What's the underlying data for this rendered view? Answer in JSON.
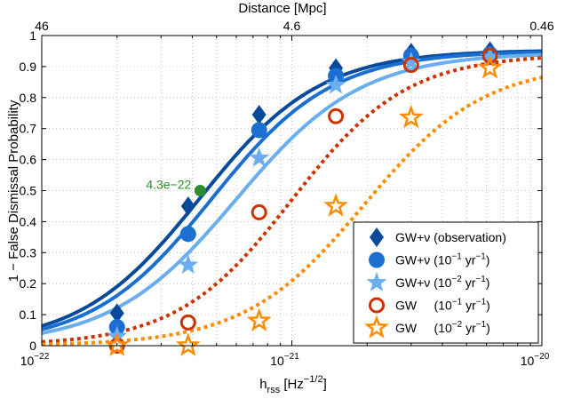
{
  "chart_data": {
    "type": "line",
    "title": "",
    "xlabel": "h",
    "xlabel_sub": "rss",
    "xlabel_unit_pre": "[Hz",
    "xlabel_unit_sup": "−1/2",
    "xlabel_unit_post": "]",
    "ylabel": "1 − False Dismissal Probability",
    "top_axis_label": "Distance [Mpc]",
    "top_ticks": [
      {
        "label": "46",
        "h": 1e-22
      },
      {
        "label": "4.6",
        "h": 1e-21
      },
      {
        "label": "0.46",
        "h": 1e-20
      }
    ],
    "xscale": "log",
    "xlim": [
      1e-22,
      1e-20
    ],
    "ylim": [
      0,
      1
    ],
    "x_ticks": [
      {
        "base": "10",
        "exp": "−22",
        "value": 1e-22
      },
      {
        "base": "10",
        "exp": "−21",
        "value": 1e-21
      },
      {
        "base": "10",
        "exp": "−20",
        "value": 1e-20
      }
    ],
    "y_ticks": [
      "0",
      "0.1",
      "0.2",
      "0.3",
      "0.4",
      "0.5",
      "0.6",
      "0.7",
      "0.8",
      "0.9",
      "1"
    ],
    "grid": true,
    "legend_position": "bottom-right",
    "annotation": {
      "text": "4.3e−22",
      "x": 4.3e-22,
      "y": 0.5,
      "color": "#2e8b2e"
    },
    "series": [
      {
        "name": "GW+ν (observation)",
        "legend_main": "GW+ν (observation)",
        "legend_exp": "",
        "legend_tail": "",
        "marker": "diamond",
        "color": "#0a4a9a",
        "line": "solid",
        "fit": {
          "x50": 4.3e-22,
          "w": 0.24,
          "top": 0.953
        },
        "x": [
          2e-22,
          3.85e-22,
          7.4e-22,
          1.5e-21,
          3e-21,
          6.2e-21
        ],
        "values": [
          0.105,
          0.45,
          0.745,
          0.895,
          0.945,
          0.95
        ]
      },
      {
        "name": "GW+ν (10^-1 yr^-1)",
        "legend_main": "GW+ν (10",
        "legend_exp": "−1",
        "legend_tail": "yr",
        "legend_tail_exp": "−1",
        "marker": "circle",
        "color": "#1a6fd0",
        "line": "solid",
        "fit": {
          "x50": 4.8e-22,
          "w": 0.24,
          "top": 0.95
        },
        "x": [
          2e-22,
          3.85e-22,
          7.4e-22,
          1.5e-21,
          3e-21,
          6.2e-21
        ],
        "values": [
          0.06,
          0.36,
          0.695,
          0.87,
          0.935,
          0.94
        ]
      },
      {
        "name": "GW+ν (10^-2 yr^-1)",
        "legend_main": "GW+ν (10",
        "legend_exp": "−2",
        "legend_tail": "yr",
        "legend_tail_exp": "−1",
        "marker": "star",
        "color": "#6aaef0",
        "line": "solid",
        "fit": {
          "x50": 6e-22,
          "w": 0.25,
          "top": 0.945
        },
        "x": [
          2e-22,
          3.85e-22,
          7.4e-22,
          1.5e-21,
          3e-21,
          6.2e-21
        ],
        "values": [
          0.03,
          0.26,
          0.605,
          0.84,
          0.915,
          0.93
        ]
      },
      {
        "name": "GW (10^-1 yr^-1)",
        "legend_main": "GW     (10",
        "legend_exp": "−1",
        "legend_tail": "yr",
        "legend_tail_exp": "−1",
        "marker": "open-circle",
        "color": "#cc3300",
        "line": "dotted",
        "fit": {
          "x50": 1e-21,
          "w": 0.23,
          "top": 0.94
        },
        "x": [
          2e-22,
          3.85e-22,
          7.4e-22,
          1.5e-21,
          3e-21,
          6.2e-21
        ],
        "values": [
          0.0,
          0.075,
          0.43,
          0.74,
          0.905,
          0.935
        ]
      },
      {
        "name": "GW (10^-2 yr^-1)",
        "legend_main": "GW     (10",
        "legend_exp": "−2",
        "legend_tail": "yr",
        "legend_tail_exp": "−1",
        "marker": "open-star",
        "color": "#ff8c00",
        "line": "dotted",
        "fit": {
          "x50": 1.95e-21,
          "w": 0.24,
          "top": 0.91
        },
        "x": [
          2e-22,
          3.85e-22,
          7.4e-22,
          1.5e-21,
          3e-21,
          6.2e-21
        ],
        "values": [
          0.0,
          0.0,
          0.08,
          0.45,
          0.735,
          0.895
        ]
      }
    ]
  }
}
